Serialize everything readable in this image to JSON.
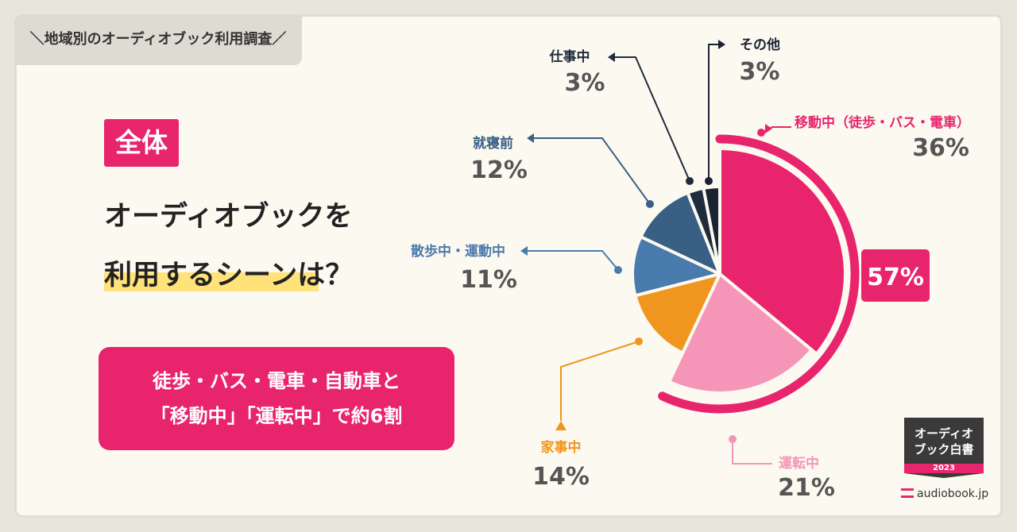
{
  "tag": "＼地域別のオーディオブック利用調査／",
  "badge": "全体",
  "headline": {
    "line1": "オーディオブックを",
    "line2": "利用するシーンは？"
  },
  "callout": {
    "line1": "徒歩・バス・電車・自動車と",
    "line2": "「移動中」「運転中」で約6割"
  },
  "chart_data": {
    "type": "pie",
    "slices": [
      {
        "label": "移動中（徒歩・バス・電車）",
        "value": 36,
        "display": "36%",
        "color": "#e8256c"
      },
      {
        "label": "運転中",
        "value": 21,
        "display": "21%",
        "color": "#f596b8"
      },
      {
        "label": "家事中",
        "value": 14,
        "display": "14%",
        "color": "#f0961f"
      },
      {
        "label": "散歩中・運動中",
        "value": 11,
        "display": "11%",
        "color": "#4a7bad"
      },
      {
        "label": "就寝前",
        "value": 12,
        "display": "12%",
        "color": "#395f85"
      },
      {
        "label": "仕事中",
        "value": 3,
        "display": "3%",
        "color": "#1f2c3c"
      },
      {
        "label": "その他",
        "value": 3,
        "display": "3%",
        "color": "#1a2433"
      }
    ],
    "group": {
      "label": "57%",
      "members": [
        "移動中（徒歩・バス・電車）",
        "運転中"
      ],
      "color": "#e8256c"
    }
  },
  "logo": {
    "line1": "オーディオ",
    "line2": "ブック白書",
    "year": "2023",
    "url": "audiobook.jp"
  }
}
